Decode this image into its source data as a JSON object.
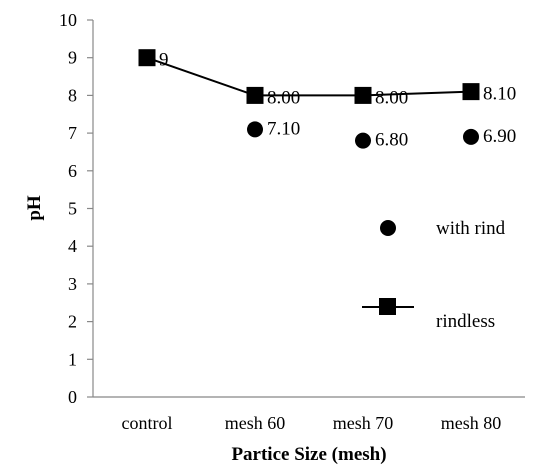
{
  "chart_data": {
    "type": "line",
    "categories": [
      "control",
      "mesh 60",
      "mesh 70",
      "mesh 80"
    ],
    "xlabel": "Partice Size (mesh)",
    "ylabel": "pH",
    "ylim": [
      0,
      10
    ],
    "yticks": [
      0,
      1,
      2,
      3,
      4,
      5,
      6,
      7,
      8,
      9,
      10
    ],
    "grid": false,
    "legend_position": "right",
    "series": [
      {
        "name": "with rind",
        "style": "markers-only",
        "marker": "circle",
        "values": [
          null,
          7.1,
          6.8,
          6.9
        ],
        "labels": [
          null,
          "7.10",
          "6.80",
          "6.90"
        ]
      },
      {
        "name": "rindless",
        "style": "line-markers",
        "marker": "square",
        "values": [
          9,
          8.0,
          8.0,
          8.1
        ],
        "labels": [
          "9",
          "8.00",
          "8.00",
          "8.10"
        ]
      }
    ],
    "color": "#000000"
  }
}
